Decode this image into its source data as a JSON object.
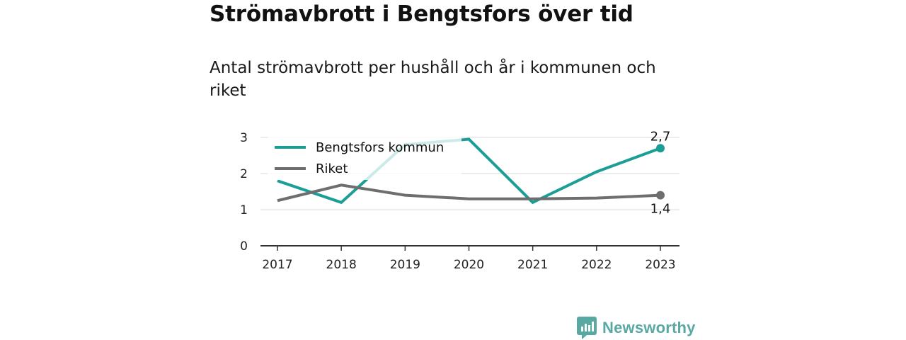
{
  "title": "Strömavbrott i Bengtsfors över tid",
  "subtitle": "Antal strömavbrott per hushåll och år i kommunen och riket",
  "brand": {
    "name": "Newsworthy",
    "icon": "chart-speech-bubble-icon",
    "color": "#5aa8a2"
  },
  "chart_data": {
    "type": "line",
    "x": [
      "2017",
      "2018",
      "2019",
      "2020",
      "2021",
      "2022",
      "2023"
    ],
    "ylim": [
      0,
      3
    ],
    "yticks": [
      "0",
      "1",
      "2",
      "3"
    ],
    "grid": true,
    "legend": "top-left",
    "series": [
      {
        "name": "Bengtsfors kommun",
        "color": "#1a9e96",
        "values": [
          1.8,
          1.2,
          2.8,
          2.95,
          1.2,
          2.05,
          2.7
        ],
        "end_label": "2,7"
      },
      {
        "name": "Riket",
        "color": "#6e6e6e",
        "values": [
          1.25,
          1.68,
          1.4,
          1.3,
          1.3,
          1.32,
          1.4
        ],
        "end_label": "1,4"
      }
    ]
  }
}
